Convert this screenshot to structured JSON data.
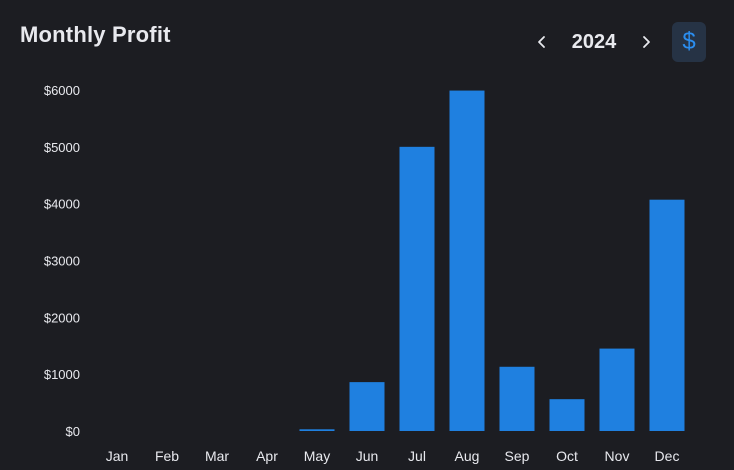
{
  "header": {
    "title": "Monthly Profit",
    "year": "2024",
    "prev_icon": "chevron-left-icon",
    "next_icon": "chevron-right-icon",
    "currency_icon": "dollar-icon",
    "currency_symbol": "$"
  },
  "colors": {
    "background": "#1c1d22",
    "bar": "#1f80e0",
    "accent": "#2b8ef0",
    "text": "#e8e9ee"
  },
  "chart_data": {
    "type": "bar",
    "title": "Monthly Profit",
    "categories": [
      "Jan",
      "Feb",
      "Mar",
      "Apr",
      "May",
      "Jun",
      "Jul",
      "Aug",
      "Sep",
      "Oct",
      "Nov",
      "Dec"
    ],
    "values": [
      0,
      0,
      0,
      0,
      30,
      860,
      5000,
      5990,
      1130,
      560,
      1450,
      4070
    ],
    "yticks": [
      "$0",
      "$1000",
      "$2000",
      "$3000",
      "$4000",
      "$5000",
      "$6000"
    ],
    "ytick_values": [
      0,
      1000,
      2000,
      3000,
      4000,
      5000,
      6000
    ],
    "ylim": [
      0,
      6000
    ],
    "xlabel": "",
    "ylabel": "",
    "grid": false,
    "legend": "none"
  }
}
